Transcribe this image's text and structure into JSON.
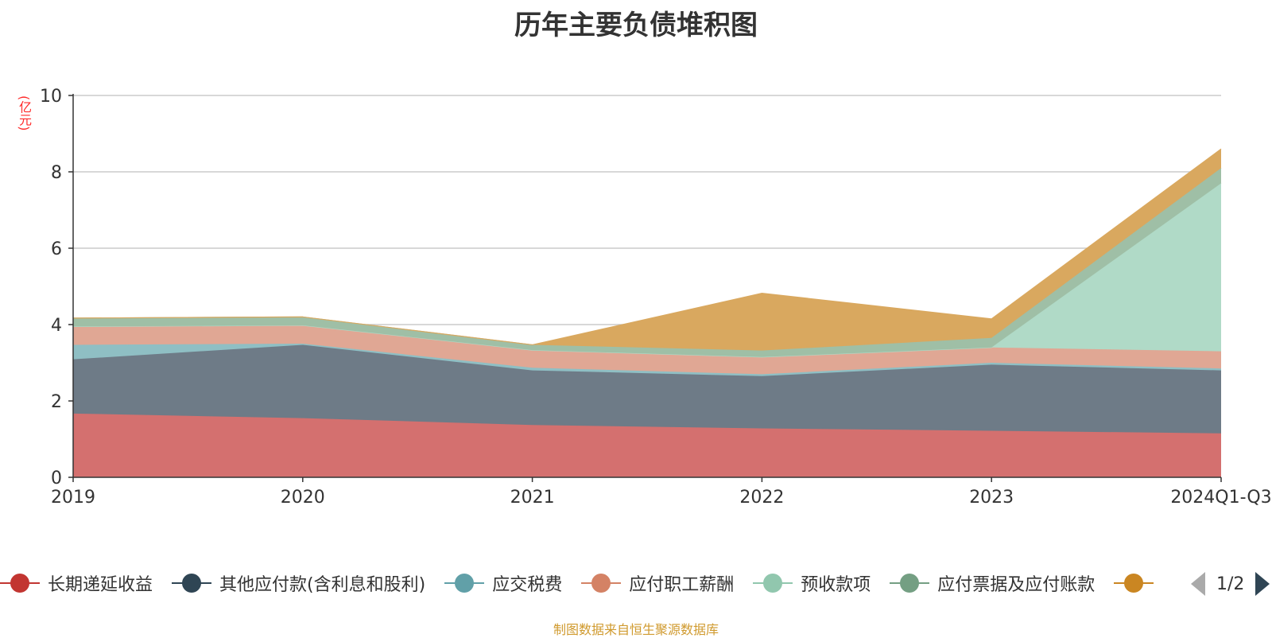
{
  "title": "历年主要负债堆积图",
  "unit": "(亿元)",
  "footer": "制图数据来自恒生聚源数据库",
  "pager": {
    "text": "1/2"
  },
  "chart_data": {
    "type": "area",
    "stacked": true,
    "title": "历年主要负债堆积图",
    "ylabel": "(亿元)",
    "xlabel": "",
    "categories": [
      "2019",
      "2020",
      "2021",
      "2022",
      "2023",
      "2024Q1-Q3"
    ],
    "ylim": [
      0,
      10
    ],
    "yticks": [
      0,
      2,
      4,
      6,
      8,
      10
    ],
    "grid": true,
    "legend_position": "bottom",
    "series": [
      {
        "name": "长期递延收益",
        "color": "#c23531",
        "fill": "#d4706f",
        "values": [
          1.67,
          1.55,
          1.37,
          1.28,
          1.22,
          1.15
        ]
      },
      {
        "name": "其他应付款(含利息和股利)",
        "color": "#2f4554",
        "fill": "#6e7b87",
        "values": [
          1.42,
          1.92,
          1.43,
          1.37,
          1.73,
          1.65
        ]
      },
      {
        "name": "应交税费",
        "color": "#61a0a8",
        "fill": "#8fbfc4",
        "values": [
          0.38,
          0.03,
          0.07,
          0.05,
          0.05,
          0.05
        ]
      },
      {
        "name": "应付职工薪酬",
        "color": "#d48265",
        "fill": "#e0a794",
        "values": [
          0.48,
          0.48,
          0.46,
          0.45,
          0.4,
          0.45
        ]
      },
      {
        "name": "预收款项",
        "color": "#91c7ae",
        "fill": "#b0dac7",
        "values": [
          0,
          0,
          0,
          0,
          0,
          4.4
        ]
      },
      {
        "name": "应付票据及应付账款",
        "color": "#749f83",
        "fill": "#9fbfa6",
        "values": [
          0.22,
          0.22,
          0.14,
          0.17,
          0.25,
          0.4
        ]
      },
      {
        "name": "",
        "color": "#ca8622",
        "fill": "#d9a85f",
        "values": [
          0,
          0,
          0,
          1.5,
          0.5,
          0.5
        ]
      }
    ]
  }
}
